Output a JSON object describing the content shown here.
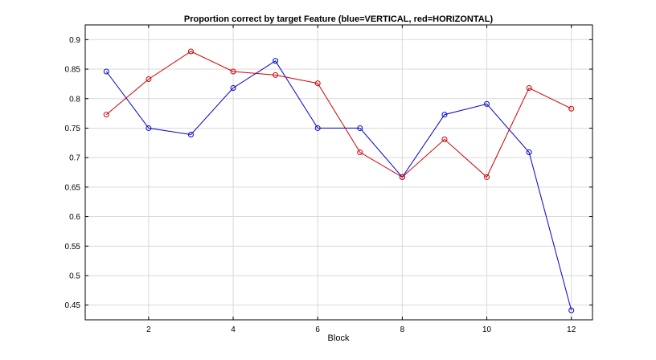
{
  "chart_data": {
    "type": "line",
    "title": "Proportion correct by target Feature (blue=VERTICAL, red=HORIZONTAL)",
    "xlabel": "Block",
    "ylabel": "",
    "xlim": [
      0.5,
      12.5
    ],
    "ylim": [
      0.425,
      0.925
    ],
    "xticks": [
      2,
      4,
      6,
      8,
      10,
      12
    ],
    "yticks": [
      0.45,
      0.5,
      0.55,
      0.6,
      0.65,
      0.7,
      0.75,
      0.8,
      0.85,
      0.9
    ],
    "grid": true,
    "x": [
      1,
      2,
      3,
      4,
      5,
      6,
      7,
      8,
      9,
      10,
      11,
      12
    ],
    "series": [
      {
        "color": "#0000cc",
        "values": [
          0.846,
          0.75,
          0.739,
          0.818,
          0.864,
          0.75,
          0.75,
          0.667,
          0.773,
          0.791,
          0.709,
          0.441
        ]
      },
      {
        "color": "#cc0000",
        "values": [
          0.773,
          0.833,
          0.88,
          0.846,
          0.84,
          0.826,
          0.709,
          0.667,
          0.731,
          0.667,
          0.818,
          0.783
        ]
      }
    ]
  }
}
